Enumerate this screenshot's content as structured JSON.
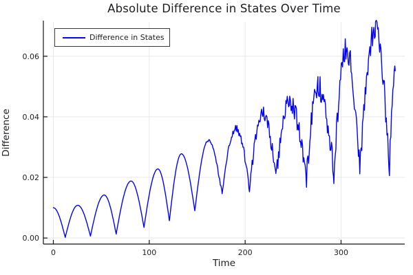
{
  "chart_data": {
    "type": "line",
    "title": "Absolute Difference in States Over Time",
    "xlabel": "Time",
    "ylabel": "Difference",
    "legend": {
      "position": "top-left",
      "entries": [
        {
          "label": "Difference in States",
          "color": "#0000ff"
        }
      ]
    },
    "grid": true,
    "xlim": [
      -10.4,
      366.4
    ],
    "ylim": [
      -0.002,
      0.0713
    ],
    "xticks": {
      "values": [
        0,
        100,
        200,
        300
      ],
      "labels": [
        "0",
        "100",
        "200",
        "300"
      ]
    },
    "yticks": {
      "values": [
        0,
        0.02,
        0.04,
        0.06
      ],
      "labels": [
        "0.00",
        "0.02",
        "0.04",
        "0.06"
      ]
    },
    "series": [
      {
        "name": "Difference in States",
        "color": "#0000ff",
        "line_width": 1.4,
        "shape": "rectified-sine-arches with cusped valleys, rising envelope, noise after t~150",
        "sample_step": 0.7,
        "keyframes": [
          [
            0,
            0.01
          ],
          [
            12.4,
            0.0002
          ],
          [
            25.5,
            0.0108
          ],
          [
            38.7,
            0.0006
          ],
          [
            53,
            0.0142
          ],
          [
            65.5,
            0.0013
          ],
          [
            81,
            0.0188
          ],
          [
            94.5,
            0.0035
          ],
          [
            109,
            0.0228
          ],
          [
            121,
            0.0057
          ],
          [
            133.5,
            0.0278
          ],
          [
            147.5,
            0.009
          ],
          [
            161.5,
            0.0322
          ],
          [
            176,
            0.0143
          ],
          [
            190,
            0.0362
          ],
          [
            204.5,
            0.0162
          ],
          [
            218.5,
            0.0415
          ],
          [
            232,
            0.0194
          ],
          [
            246.5,
            0.0448
          ],
          [
            264,
            0.02
          ],
          [
            276,
            0.05
          ],
          [
            292.5,
            0.0213
          ],
          [
            305.5,
            0.0625
          ],
          [
            319.5,
            0.0234
          ],
          [
            336,
            0.0695
          ],
          [
            350.5,
            0.0225
          ],
          [
            356.5,
            0.0552
          ]
        ],
        "noise": {
          "start_t": 150,
          "ramp_per_t": 3.3e-05,
          "max_amp": 0.0042
        }
      }
    ]
  },
  "colors": {
    "line": "#0000ff",
    "grid": "#e8e8eb",
    "axis": "#111114",
    "text": "#1c1c22",
    "legend_border": "#35353d",
    "background": "#ffffff"
  }
}
